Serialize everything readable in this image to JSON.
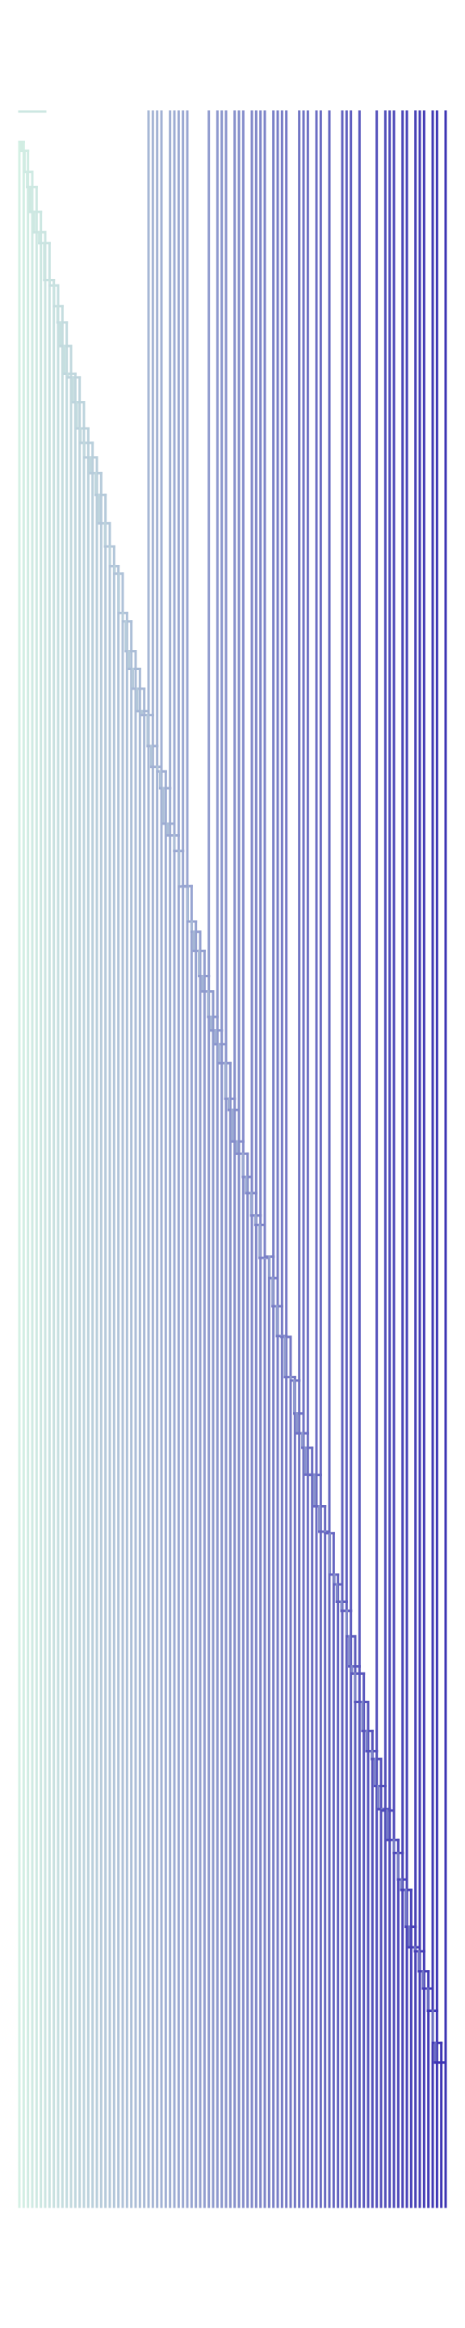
{
  "diagram": {
    "type": "dendrogram",
    "orientation": "vertical",
    "leaf_count": 100,
    "labels_shown": false,
    "axes_shown": false,
    "color_gradient": {
      "from": "#d4f0e4",
      "to": "#3d34b4"
    },
    "line_width": 3
  }
}
